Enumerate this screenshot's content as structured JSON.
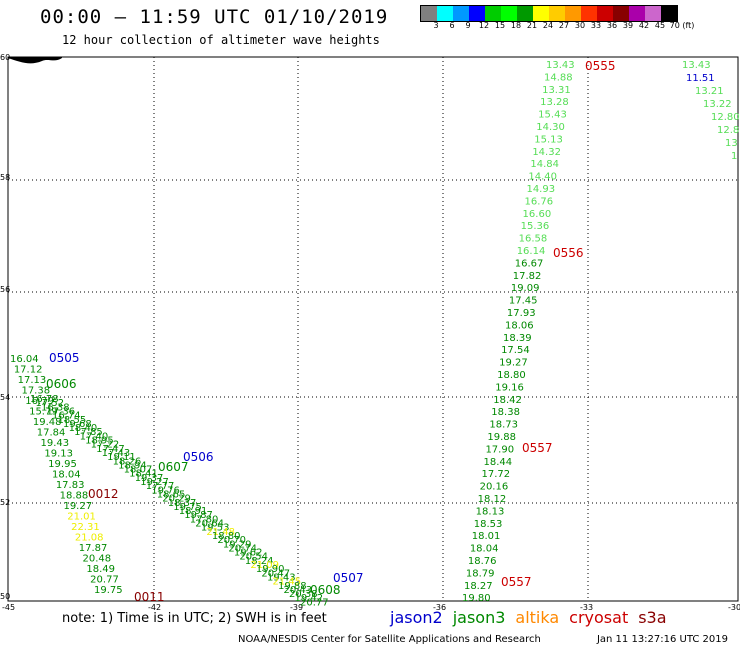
{
  "header": {
    "title": "00:00 – 11:59 UTC 01/10/2019",
    "subtitle": "12 hour collection of altimeter wave heights"
  },
  "colorbar": {
    "colors": [
      "#808080",
      "#00ffff",
      "#0099ff",
      "#0000ff",
      "#00cc00",
      "#00ff00",
      "#009900",
      "#ffff00",
      "#ffcc00",
      "#ff9900",
      "#ff3300",
      "#cc0000",
      "#880000",
      "#aa00aa",
      "#cc66cc",
      "#000000"
    ],
    "labels": [
      "3",
      "6",
      "9",
      "12",
      "15",
      "18",
      "21",
      "24",
      "27",
      "30",
      "33",
      "36",
      "39",
      "42",
      "45",
      "70 (ft)"
    ]
  },
  "map": {
    "lat_ticks": [
      "60",
      "58",
      "56",
      "54",
      "52",
      "50"
    ],
    "lon_ticks": [
      "-45",
      "-42",
      "-39",
      "-36",
      "-33",
      "-30"
    ]
  },
  "passes": [
    {
      "id": "0505",
      "sat": "jason2"
    },
    {
      "id": "0506",
      "sat": "jason2"
    },
    {
      "id": "0507",
      "sat": "jason2"
    },
    {
      "id": "0606",
      "sat": "jason3"
    },
    {
      "id": "0607",
      "sat": "jason3"
    },
    {
      "id": "0608",
      "sat": "jason3"
    },
    {
      "id": "0012",
      "sat": "s3a"
    },
    {
      "id": "0011",
      "sat": "s3a"
    },
    {
      "id": "0555",
      "sat": "cryosat"
    },
    {
      "id": "0556",
      "sat": "cryosat"
    },
    {
      "id": "0557",
      "sat": "cryosat"
    },
    {
      "id": "0557",
      "sat": "cryosat"
    }
  ],
  "observations": {
    "track_east": [
      "13.43",
      "14.88",
      "13.31",
      "13.28",
      "15.43",
      "14.30",
      "15.13",
      "14.32",
      "14.84",
      "14.40",
      "14.93",
      "16.76",
      "16.60",
      "15.36",
      "16.58",
      "16.14",
      "16.67",
      "17.82",
      "19.09",
      "17.45",
      "17.93",
      "18.06",
      "18.39",
      "17.54",
      "19.27",
      "18.80",
      "19.16",
      "18.42",
      "18.38",
      "18.73",
      "19.88",
      "17.90",
      "18.44",
      "17.72",
      "20.16",
      "18.12",
      "18.13",
      "18.53",
      "18.01",
      "18.04",
      "18.76",
      "18.79",
      "18.27",
      "19.80"
    ],
    "track_far_east": [
      "13.43",
      "11.51",
      "13.21",
      "13.22",
      "12.80",
      "12.8",
      "13",
      "1"
    ],
    "track_west_a": [
      "16.04",
      "17.12",
      "17.13",
      "17.38",
      "16.79",
      "15.79",
      "19.48",
      "17.84",
      "19.43",
      "19.13",
      "19.95",
      "18.04",
      "17.83",
      "18.88",
      "19.27",
      "21.01",
      "22.31",
      "21.08",
      "17.87",
      "20.48",
      "18.49",
      "20.77",
      "19.75"
    ],
    "track_west_b": [
      "16.78",
      "17.52",
      "16.38",
      "17.36",
      "16.74",
      "18.55",
      "19.68",
      "18.40",
      "17.85",
      "17.40",
      "18.95",
      "17.22",
      "17.47",
      "17.43",
      "19.11",
      "18.26",
      "18.94",
      "18.07",
      "18.41",
      "19.37",
      "19.27",
      "17.77",
      "19.76",
      "18.65",
      "20.29",
      "18.37",
      "19.75",
      "18.91",
      "19.87",
      "17.80",
      "20.64",
      "19.53",
      "21.48",
      "18.80",
      "20.70",
      "19.29",
      "20.74",
      "19.62",
      "20.54",
      "18.24",
      "21.09",
      "19.90",
      "20.47",
      "19.43",
      "21.45",
      "19.88",
      "20.43",
      "20.38",
      "19.42",
      "20.77"
    ]
  },
  "legend": {
    "note": "note: 1) Time is in UTC; 2) SWH is in feet",
    "sats": [
      {
        "name": "jason2",
        "color": "#0000cc"
      },
      {
        "name": "jason3",
        "color": "#008800"
      },
      {
        "name": "altika",
        "color": "#ff8800"
      },
      {
        "name": "cryosat",
        "color": "#cc0000"
      },
      {
        "name": "s3a",
        "color": "#880000"
      }
    ]
  },
  "footer": {
    "org": "NOAA/NESDIS Center for Satellite Applications and Research",
    "timestamp": "Jan 11 13:27:16 UTC 2019"
  },
  "colors": {
    "jason2": "#0000cc",
    "jason3": "#008800",
    "altika": "#ff8800",
    "cryosat": "#cc0000",
    "s3a": "#880000",
    "obs_light": "#55dd55",
    "obs_dark": "#008800",
    "obs_yellow": "#eeee00"
  }
}
